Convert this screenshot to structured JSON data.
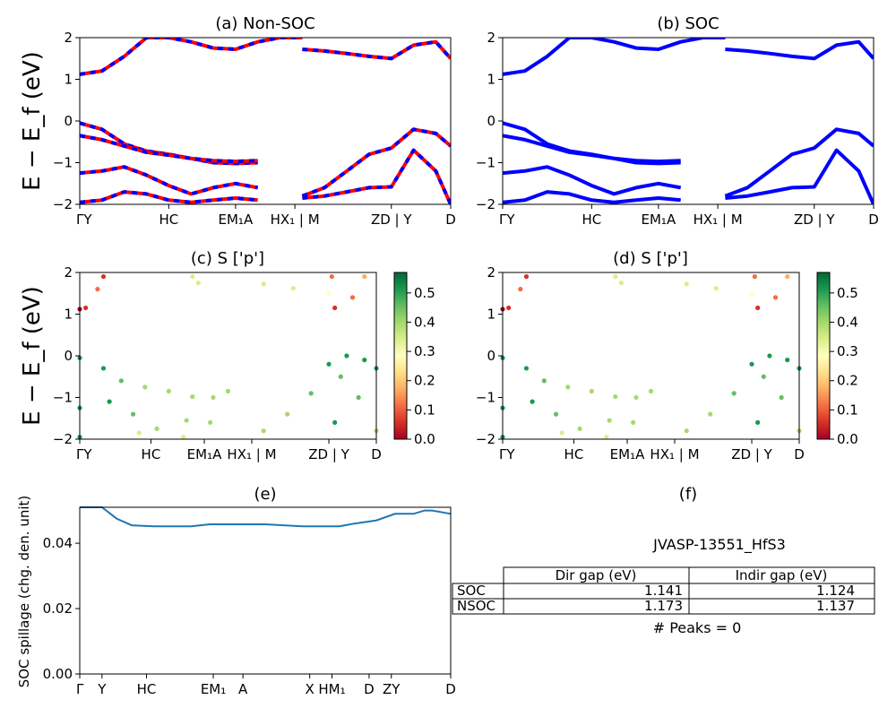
{
  "figure": {
    "ylabel_energy": "E − E_f (eV)",
    "ylabel_spillage": "SOC spillage (chg. den. unit)"
  },
  "colorbar_ticks": [
    "0.0",
    "0.1",
    "0.2",
    "0.3",
    "0.4",
    "0.5"
  ],
  "chart_data": [
    {
      "id": "a",
      "type": "line",
      "title": "(a) Non-SOC",
      "ylim": [
        -2,
        2
      ],
      "yticks": [
        "2",
        "1",
        "0",
        "−1",
        "−2"
      ],
      "xticks": [
        "ΓY",
        "HC",
        "EM₁A",
        "HX₁ | M",
        "ZD | Y",
        "D"
      ],
      "series_colors": [
        "#ff0000",
        "#0000ff"
      ],
      "bands": [
        {
          "x": [
            0.0,
            0.06,
            0.12,
            0.18,
            0.24,
            0.3,
            0.36,
            0.42,
            0.48,
            0.54,
            0.6
          ],
          "y": [
            1.12,
            1.2,
            1.55,
            2.0,
            2.0,
            1.9,
            1.75,
            1.72,
            1.9,
            2.0,
            2.0
          ]
        },
        {
          "x": [
            0.0,
            0.06,
            0.12,
            0.18,
            0.24,
            0.3,
            0.36,
            0.42,
            0.48
          ],
          "y": [
            -0.05,
            -0.2,
            -0.55,
            -0.72,
            -0.8,
            -0.9,
            -1.0,
            -1.02,
            -1.0
          ]
        },
        {
          "x": [
            0.0,
            0.06,
            0.12,
            0.18,
            0.24,
            0.3,
            0.36,
            0.42,
            0.48
          ],
          "y": [
            -0.35,
            -0.45,
            -0.6,
            -0.75,
            -0.82,
            -0.9,
            -0.95,
            -0.97,
            -0.95
          ]
        },
        {
          "x": [
            0.0,
            0.06,
            0.12,
            0.18,
            0.24,
            0.3,
            0.36,
            0.42,
            0.48
          ],
          "y": [
            -1.25,
            -1.2,
            -1.1,
            -1.3,
            -1.55,
            -1.75,
            -1.6,
            -1.5,
            -1.6
          ]
        },
        {
          "x": [
            0.0,
            0.06,
            0.12,
            0.18,
            0.24,
            0.3,
            0.36,
            0.42,
            0.48
          ],
          "y": [
            -1.95,
            -1.9,
            -1.7,
            -1.75,
            -1.9,
            -1.95,
            -1.9,
            -1.85,
            -1.9
          ]
        },
        {
          "x": [
            0.6,
            0.66,
            0.72,
            0.78,
            0.84,
            0.9,
            0.96,
            1.0
          ],
          "y": [
            1.72,
            1.68,
            1.62,
            1.55,
            1.5,
            1.82,
            1.9,
            1.5
          ]
        },
        {
          "x": [
            0.6,
            0.66,
            0.72,
            0.78,
            0.84,
            0.9,
            0.96,
            1.0
          ],
          "y": [
            -1.8,
            -1.6,
            -1.2,
            -0.8,
            -0.65,
            -0.2,
            -0.3,
            -0.6
          ]
        },
        {
          "x": [
            0.6,
            0.66,
            0.72,
            0.78,
            0.84,
            0.9,
            0.96,
            1.0
          ],
          "y": [
            -1.85,
            -1.8,
            -1.7,
            -1.6,
            -1.58,
            -0.7,
            -1.2,
            -2.0
          ]
        }
      ]
    },
    {
      "id": "b",
      "type": "line",
      "title": "(b) SOC",
      "ylim": [
        -2,
        2
      ],
      "yticks": [
        "2",
        "1",
        "0",
        "−1",
        "−2"
      ],
      "xticks": [
        "ΓY",
        "HC",
        "EM₁A",
        "HX₁ | M",
        "ZD | Y",
        "D"
      ],
      "series_colors": [
        "#0000ff"
      ],
      "bands": [
        {
          "x": [
            0.0,
            0.06,
            0.12,
            0.18,
            0.24,
            0.3,
            0.36,
            0.42,
            0.48,
            0.54,
            0.6
          ],
          "y": [
            1.12,
            1.2,
            1.55,
            2.0,
            2.0,
            1.9,
            1.75,
            1.72,
            1.9,
            2.0,
            2.0
          ]
        },
        {
          "x": [
            0.0,
            0.06,
            0.12,
            0.18,
            0.24,
            0.3,
            0.36,
            0.42,
            0.48
          ],
          "y": [
            -0.05,
            -0.2,
            -0.55,
            -0.72,
            -0.8,
            -0.9,
            -1.0,
            -1.02,
            -1.0
          ]
        },
        {
          "x": [
            0.0,
            0.06,
            0.12,
            0.18,
            0.24,
            0.3,
            0.36,
            0.42,
            0.48
          ],
          "y": [
            -0.35,
            -0.45,
            -0.6,
            -0.75,
            -0.82,
            -0.9,
            -0.95,
            -0.97,
            -0.95
          ]
        },
        {
          "x": [
            0.0,
            0.06,
            0.12,
            0.18,
            0.24,
            0.3,
            0.36,
            0.42,
            0.48
          ],
          "y": [
            -1.25,
            -1.2,
            -1.1,
            -1.3,
            -1.55,
            -1.75,
            -1.6,
            -1.5,
            -1.6
          ]
        },
        {
          "x": [
            0.0,
            0.06,
            0.12,
            0.18,
            0.24,
            0.3,
            0.36,
            0.42,
            0.48
          ],
          "y": [
            -1.95,
            -1.9,
            -1.7,
            -1.75,
            -1.9,
            -1.95,
            -1.9,
            -1.85,
            -1.9
          ]
        },
        {
          "x": [
            0.6,
            0.66,
            0.72,
            0.78,
            0.84,
            0.9,
            0.96,
            1.0
          ],
          "y": [
            1.72,
            1.68,
            1.62,
            1.55,
            1.5,
            1.82,
            1.9,
            1.5
          ]
        },
        {
          "x": [
            0.6,
            0.66,
            0.72,
            0.78,
            0.84,
            0.9,
            0.96,
            1.0
          ],
          "y": [
            -1.8,
            -1.6,
            -1.2,
            -0.8,
            -0.65,
            -0.2,
            -0.3,
            -0.6
          ]
        },
        {
          "x": [
            0.6,
            0.66,
            0.72,
            0.78,
            0.84,
            0.9,
            0.96,
            1.0
          ],
          "y": [
            -1.85,
            -1.8,
            -1.7,
            -1.6,
            -1.58,
            -0.7,
            -1.2,
            -2.0
          ]
        }
      ]
    },
    {
      "id": "c",
      "type": "scatter",
      "title": "(c)  S ['p']",
      "ylim": [
        -2,
        2
      ],
      "yticks": [
        "2",
        "1",
        "0",
        "−1",
        "−2"
      ],
      "xticks": [
        "ΓY",
        "HC",
        "EM₁A",
        "HX₁ | M",
        "ZD | Y",
        "D"
      ],
      "colorbar_range": [
        0,
        0.57
      ],
      "points": [
        {
          "x": 0.0,
          "y": 1.12,
          "v": 0.02
        },
        {
          "x": 0.02,
          "y": 1.15,
          "v": 0.05
        },
        {
          "x": 0.06,
          "y": 1.6,
          "v": 0.1
        },
        {
          "x": 0.08,
          "y": 1.9,
          "v": 0.08
        },
        {
          "x": 0.0,
          "y": -0.05,
          "v": 0.52
        },
        {
          "x": 0.08,
          "y": -0.3,
          "v": 0.5
        },
        {
          "x": 0.14,
          "y": -0.6,
          "v": 0.45
        },
        {
          "x": 0.22,
          "y": -0.75,
          "v": 0.42
        },
        {
          "x": 0.3,
          "y": -0.85,
          "v": 0.42
        },
        {
          "x": 0.38,
          "y": -0.98,
          "v": 0.42
        },
        {
          "x": 0.45,
          "y": -1.0,
          "v": 0.42
        },
        {
          "x": 0.5,
          "y": -0.85,
          "v": 0.4
        },
        {
          "x": 0.0,
          "y": -1.25,
          "v": 0.5
        },
        {
          "x": 0.1,
          "y": -1.1,
          "v": 0.5
        },
        {
          "x": 0.18,
          "y": -1.4,
          "v": 0.45
        },
        {
          "x": 0.26,
          "y": -1.75,
          "v": 0.42
        },
        {
          "x": 0.36,
          "y": -1.55,
          "v": 0.42
        },
        {
          "x": 0.44,
          "y": -1.6,
          "v": 0.42
        },
        {
          "x": 0.0,
          "y": -1.95,
          "v": 0.5
        },
        {
          "x": 0.2,
          "y": -1.85,
          "v": 0.35
        },
        {
          "x": 0.35,
          "y": -1.95,
          "v": 0.35
        },
        {
          "x": 0.4,
          "y": 1.75,
          "v": 0.35
        },
        {
          "x": 0.38,
          "y": 1.9,
          "v": 0.35
        },
        {
          "x": 0.62,
          "y": 1.72,
          "v": 0.35
        },
        {
          "x": 0.72,
          "y": 1.62,
          "v": 0.32
        },
        {
          "x": 0.84,
          "y": 1.5,
          "v": 0.3
        },
        {
          "x": 0.86,
          "y": 1.15,
          "v": 0.05
        },
        {
          "x": 0.92,
          "y": 1.4,
          "v": 0.1
        },
        {
          "x": 0.96,
          "y": 1.9,
          "v": 0.15
        },
        {
          "x": 0.85,
          "y": 1.9,
          "v": 0.12
        },
        {
          "x": 0.62,
          "y": -1.8,
          "v": 0.4
        },
        {
          "x": 0.7,
          "y": -1.4,
          "v": 0.42
        },
        {
          "x": 0.78,
          "y": -0.9,
          "v": 0.45
        },
        {
          "x": 0.84,
          "y": -0.2,
          "v": 0.5
        },
        {
          "x": 0.9,
          "y": 0.0,
          "v": 0.52
        },
        {
          "x": 0.96,
          "y": -0.1,
          "v": 0.52
        },
        {
          "x": 1.0,
          "y": -0.3,
          "v": 0.52
        },
        {
          "x": 0.88,
          "y": -0.5,
          "v": 0.45
        },
        {
          "x": 0.94,
          "y": -1.0,
          "v": 0.45
        },
        {
          "x": 1.0,
          "y": -1.8,
          "v": 0.42
        },
        {
          "x": 0.86,
          "y": -1.6,
          "v": 0.5
        }
      ]
    },
    {
      "id": "d",
      "type": "scatter",
      "title": "(d) S ['p']",
      "ylim": [
        -2,
        2
      ],
      "yticks": [
        "2",
        "1",
        "0",
        "−1",
        "−2"
      ],
      "xticks": [
        "ΓY",
        "HC",
        "EM₁A",
        "HX₁ | M",
        "ZD | Y",
        "D"
      ],
      "colorbar_range": [
        0,
        0.57
      ],
      "points": [
        {
          "x": 0.0,
          "y": 1.12,
          "v": 0.02
        },
        {
          "x": 0.02,
          "y": 1.15,
          "v": 0.05
        },
        {
          "x": 0.06,
          "y": 1.6,
          "v": 0.1
        },
        {
          "x": 0.08,
          "y": 1.9,
          "v": 0.08
        },
        {
          "x": 0.0,
          "y": -0.05,
          "v": 0.52
        },
        {
          "x": 0.08,
          "y": -0.3,
          "v": 0.5
        },
        {
          "x": 0.14,
          "y": -0.6,
          "v": 0.45
        },
        {
          "x": 0.22,
          "y": -0.75,
          "v": 0.42
        },
        {
          "x": 0.3,
          "y": -0.85,
          "v": 0.42
        },
        {
          "x": 0.38,
          "y": -0.98,
          "v": 0.42
        },
        {
          "x": 0.45,
          "y": -1.0,
          "v": 0.42
        },
        {
          "x": 0.5,
          "y": -0.85,
          "v": 0.4
        },
        {
          "x": 0.0,
          "y": -1.25,
          "v": 0.5
        },
        {
          "x": 0.1,
          "y": -1.1,
          "v": 0.5
        },
        {
          "x": 0.18,
          "y": -1.4,
          "v": 0.45
        },
        {
          "x": 0.26,
          "y": -1.75,
          "v": 0.42
        },
        {
          "x": 0.36,
          "y": -1.55,
          "v": 0.42
        },
        {
          "x": 0.44,
          "y": -1.6,
          "v": 0.42
        },
        {
          "x": 0.0,
          "y": -1.95,
          "v": 0.5
        },
        {
          "x": 0.2,
          "y": -1.85,
          "v": 0.35
        },
        {
          "x": 0.35,
          "y": -1.95,
          "v": 0.35
        },
        {
          "x": 0.4,
          "y": 1.75,
          "v": 0.35
        },
        {
          "x": 0.38,
          "y": 1.9,
          "v": 0.35
        },
        {
          "x": 0.62,
          "y": 1.72,
          "v": 0.35
        },
        {
          "x": 0.72,
          "y": 1.62,
          "v": 0.32
        },
        {
          "x": 0.84,
          "y": 1.5,
          "v": 0.3
        },
        {
          "x": 0.86,
          "y": 1.15,
          "v": 0.05
        },
        {
          "x": 0.92,
          "y": 1.4,
          "v": 0.1
        },
        {
          "x": 0.96,
          "y": 1.9,
          "v": 0.15
        },
        {
          "x": 0.85,
          "y": 1.9,
          "v": 0.12
        },
        {
          "x": 0.62,
          "y": -1.8,
          "v": 0.4
        },
        {
          "x": 0.7,
          "y": -1.4,
          "v": 0.42
        },
        {
          "x": 0.78,
          "y": -0.9,
          "v": 0.45
        },
        {
          "x": 0.84,
          "y": -0.2,
          "v": 0.5
        },
        {
          "x": 0.9,
          "y": 0.0,
          "v": 0.52
        },
        {
          "x": 0.96,
          "y": -0.1,
          "v": 0.52
        },
        {
          "x": 1.0,
          "y": -0.3,
          "v": 0.52
        },
        {
          "x": 0.88,
          "y": -0.5,
          "v": 0.45
        },
        {
          "x": 0.94,
          "y": -1.0,
          "v": 0.45
        },
        {
          "x": 1.0,
          "y": -1.8,
          "v": 0.42
        },
        {
          "x": 0.86,
          "y": -1.6,
          "v": 0.5
        }
      ]
    },
    {
      "id": "e",
      "type": "line",
      "title": "(e)",
      "ylim": [
        0,
        0.051
      ],
      "yticks": [
        "0.04",
        "0.02",
        "0.00"
      ],
      "ytick_values": [
        0.04,
        0.02,
        0.0
      ],
      "xticks": [
        "Γ",
        "Y",
        "HC",
        "EM₁",
        "A",
        "X",
        "HM₁",
        "D",
        "ZY",
        "D"
      ],
      "x": [
        0.0,
        0.06,
        0.1,
        0.14,
        0.2,
        0.3,
        0.35,
        0.4,
        0.5,
        0.6,
        0.7,
        0.74,
        0.8,
        0.85,
        0.9,
        0.93,
        0.95,
        1.0
      ],
      "values": [
        0.051,
        0.051,
        0.0475,
        0.0455,
        0.0452,
        0.0452,
        0.0458,
        0.0458,
        0.0458,
        0.0452,
        0.0452,
        0.046,
        0.047,
        0.049,
        0.049,
        0.05,
        0.05,
        0.049
      ]
    }
  ],
  "panel_f": {
    "title": "(f)",
    "material": "JVASP-13551_HfS3",
    "table": {
      "headers": [
        "",
        "Dir gap (eV)",
        "Indir gap (eV)"
      ],
      "rows": [
        [
          "SOC",
          "1.141",
          "1.124"
        ],
        [
          "NSOC",
          "1.173",
          "1.137"
        ]
      ]
    },
    "peaks": "# Peaks = 0"
  }
}
